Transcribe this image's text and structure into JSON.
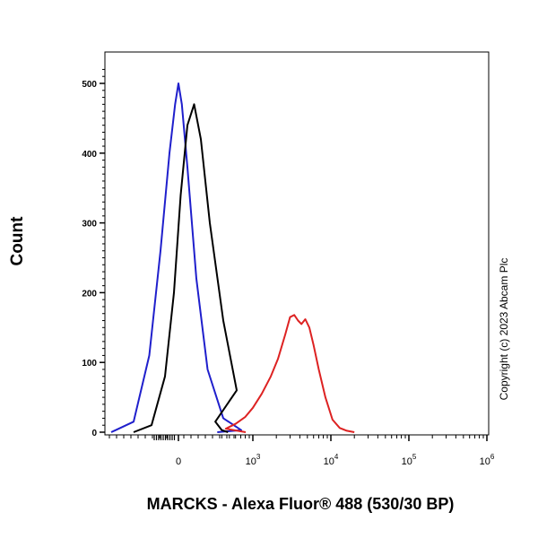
{
  "chart_data": {
    "type": "line",
    "title": "",
    "xlabel": "MARCKS - Alexa Fluor® 488 (530/30 BP)",
    "ylabel": "Count",
    "x_scale": "biexponential",
    "ylim": [
      0,
      530
    ],
    "y_ticks": [
      0,
      100,
      200,
      300,
      400,
      500
    ],
    "x_ticks": [
      {
        "value": 0,
        "label": "0"
      },
      {
        "value": 1000,
        "label": "10",
        "exp": "3"
      },
      {
        "value": 10000,
        "label": "10",
        "exp": "4"
      },
      {
        "value": 100000,
        "label": "10",
        "exp": "5"
      },
      {
        "value": 1000000,
        "label": "10",
        "exp": "6"
      }
    ],
    "grid": false,
    "legend": "none",
    "series": [
      {
        "color": "#1f1fcc",
        "x": [
          -300,
          -200,
          -130,
          -80,
          -40,
          -15,
          0,
          15,
          40,
          80,
          130,
          200,
          280,
          350
        ],
        "y": [
          0,
          15,
          110,
          260,
          400,
          470,
          500,
          470,
          380,
          220,
          90,
          20,
          3,
          0
        ]
      },
      {
        "color": "#000000",
        "x": [
          -200,
          -120,
          -60,
          -20,
          10,
          40,
          70,
          100,
          140,
          200,
          260,
          330,
          400,
          480
        ],
        "y": [
          0,
          10,
          80,
          200,
          340,
          440,
          470,
          420,
          300,
          160,
          60,
          15,
          3,
          0
        ]
      },
      {
        "color": "#dd2222",
        "x": [
          300,
          450,
          600,
          800,
          1000,
          1300,
          1700,
          2100,
          2600,
          3000,
          3400,
          3800,
          4200,
          4700,
          5300,
          6000,
          7000,
          8500,
          10500,
          13000,
          16000,
          20000
        ],
        "y": [
          0,
          5,
          12,
          22,
          35,
          55,
          80,
          105,
          140,
          165,
          168,
          160,
          155,
          162,
          150,
          125,
          90,
          50,
          18,
          6,
          2,
          0
        ]
      }
    ]
  },
  "copyright": "Copyright (c) 2023 Abcam Plc"
}
